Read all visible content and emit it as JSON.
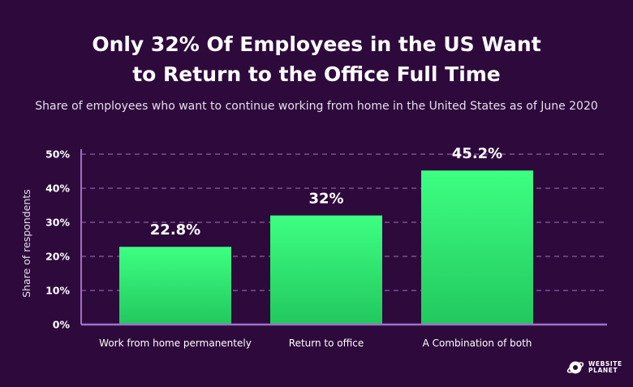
{
  "header": {
    "title_line1": "Only 32% Of Employees in the US Want",
    "title_line2": "to Return to the Office Full Time",
    "subtitle": "Share of employees who want to continue working from home in the United States as of June 2020"
  },
  "chart_data": {
    "type": "bar",
    "title": "Only 32% Of Employees in the US Want to Return to the Office Full Time",
    "subtitle": "Share of employees who want to continue working from home in the United States as of June 2020",
    "categories": [
      "Work from home permanentely",
      "Return to office",
      "A Combination of both"
    ],
    "values": [
      22.8,
      32,
      45.2
    ],
    "data_labels": [
      "22.8%",
      "32%",
      "45.2%"
    ],
    "ylabel": "Share of respondents",
    "xlabel": "",
    "ylim": [
      0,
      50
    ],
    "yticks": [
      "0%",
      "10%",
      "20%",
      "30%",
      "40%",
      "50%"
    ],
    "grid": true,
    "grid_style": "dashed",
    "colors": {
      "bar_top": "#3dff82",
      "bar_bottom": "#22c85e",
      "grid": "#8a5ca4",
      "axis": "#a070c8",
      "background": "#2e0a3c"
    }
  },
  "brand": {
    "line1": "WEBSITE",
    "line2": "PLANET",
    "icon": "planet-logo-icon"
  }
}
